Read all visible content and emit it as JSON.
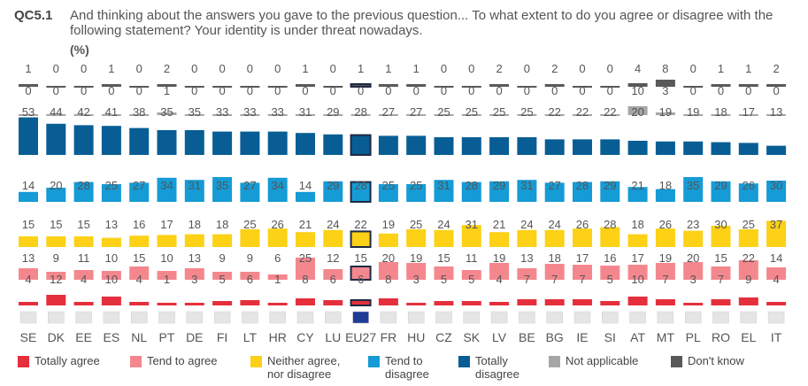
{
  "question": {
    "code": "QC5.1",
    "text": "And thinking about the answers you gave to the previous question... To what extent to do you agree or disagree with the following statement? Your identity is under threat nowadays.",
    "unit": "(%)"
  },
  "chart_data": {
    "type": "bar",
    "subtype": "stacked-100",
    "title": "QC5.1 And thinking about the answers you gave to the previous question... To what extent to do you agree or disagree with the following statement? Your identity is under threat nowadays.",
    "unit": "(%)",
    "categories": [
      "SE",
      "DK",
      "EE",
      "ES",
      "NL",
      "PT",
      "DE",
      "FI",
      "LT",
      "HR",
      "CY",
      "LU",
      "EU27",
      "FR",
      "HU",
      "CZ",
      "SK",
      "LV",
      "BE",
      "BG",
      "IE",
      "SI",
      "AT",
      "MT",
      "PL",
      "RO",
      "EL",
      "IT"
    ],
    "highlight": "EU27",
    "series": [
      {
        "name": "Totally agree",
        "color": "#e52f3c",
        "values": [
          4,
          12,
          4,
          10,
          4,
          1,
          3,
          5,
          6,
          1,
          8,
          6,
          6,
          8,
          3,
          5,
          5,
          4,
          7,
          7,
          7,
          5,
          10,
          7,
          3,
          7,
          9,
          4
        ]
      },
      {
        "name": "Tend to agree",
        "color": "#f4878e",
        "values": [
          13,
          9,
          11,
          10,
          15,
          10,
          13,
          9,
          9,
          6,
          25,
          12,
          15,
          20,
          19,
          15,
          11,
          19,
          13,
          18,
          17,
          16,
          17,
          19,
          20,
          15,
          22,
          14
        ]
      },
      {
        "name": "Neither agree, nor disagree",
        "color": "#fcd116",
        "values": [
          15,
          15,
          15,
          13,
          16,
          17,
          18,
          18,
          25,
          26,
          21,
          24,
          22,
          19,
          25,
          24,
          31,
          21,
          24,
          24,
          26,
          28,
          18,
          26,
          23,
          30,
          25,
          37
        ]
      },
      {
        "name": "Tend to disagree",
        "color": "#159bd6",
        "values": [
          14,
          20,
          28,
          25,
          27,
          34,
          31,
          35,
          27,
          34,
          14,
          29,
          28,
          25,
          25,
          31,
          28,
          29,
          31,
          27,
          28,
          29,
          21,
          18,
          35,
          29,
          26,
          30
        ]
      },
      {
        "name": "Totally disagree",
        "color": "#085e94",
        "values": [
          53,
          44,
          42,
          41,
          38,
          35,
          35,
          33,
          33,
          33,
          31,
          29,
          28,
          27,
          27,
          25,
          25,
          25,
          25,
          22,
          22,
          22,
          20,
          19,
          19,
          18,
          17,
          13
        ]
      },
      {
        "name": "Not applicable",
        "color": "#a6a6a6",
        "values": [
          0,
          0,
          0,
          0,
          0,
          1,
          0,
          0,
          0,
          0,
          0,
          0,
          0,
          0,
          0,
          0,
          0,
          0,
          0,
          0,
          0,
          0,
          10,
          3,
          0,
          0,
          0,
          0
        ]
      },
      {
        "name": "Don't know",
        "color": "#595959",
        "values": [
          1,
          0,
          0,
          1,
          0,
          2,
          0,
          0,
          0,
          0,
          1,
          0,
          1,
          1,
          1,
          0,
          0,
          2,
          0,
          2,
          0,
          0,
          4,
          8,
          0,
          1,
          1,
          2
        ]
      }
    ],
    "legend": [
      "Totally agree",
      "Tend to agree",
      "Neither agree,\nnor disagree",
      "Tend to\ndisagree",
      "Totally\ndisagree",
      "Not applicable",
      "Don't know"
    ],
    "legend_position": "bottom"
  }
}
